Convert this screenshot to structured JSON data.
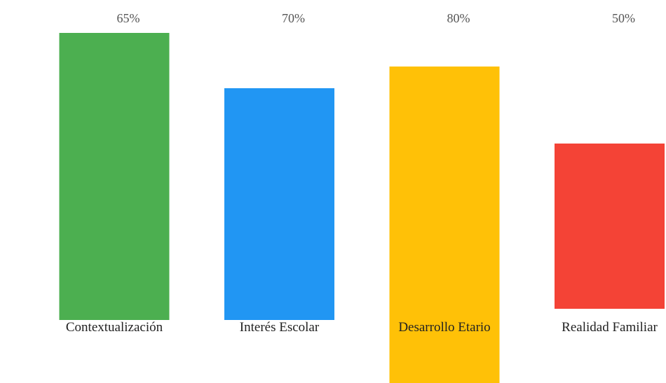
{
  "chart_data": {
    "type": "bar",
    "categories": [
      "Contextualización",
      "Interés Escolar",
      "Desarrollo Etario",
      "Realidad Familiar"
    ],
    "values": [
      65,
      70,
      80,
      50
    ],
    "value_labels": [
      "65%",
      "70%",
      "80%",
      "50%"
    ],
    "colors": [
      "#4CAF50",
      "#2196F3",
      "#FFC107",
      "#F44336"
    ],
    "unit": "%",
    "title": "",
    "xlabel": "",
    "ylabel": "",
    "grid": false,
    "legend": "none"
  }
}
